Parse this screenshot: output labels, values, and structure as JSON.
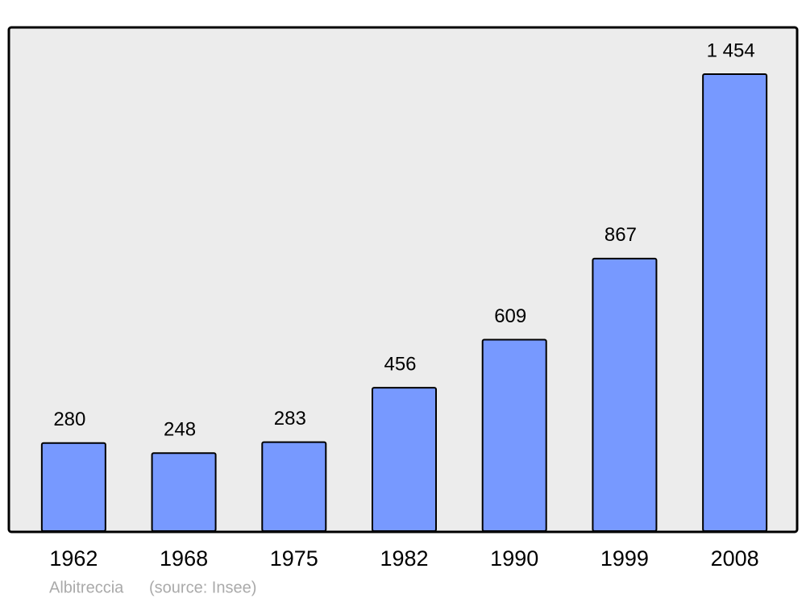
{
  "chart_data": {
    "type": "bar",
    "categories": [
      "1962",
      "1968",
      "1975",
      "1982",
      "1990",
      "1999",
      "2008"
    ],
    "values": [
      280,
      248,
      283,
      456,
      609,
      867,
      1454
    ],
    "value_labels": [
      "280",
      "248",
      "283",
      "456",
      "609",
      "867",
      "1 454"
    ],
    "color": "#7799ff",
    "ylim": [
      0,
      1600
    ],
    "caption": "Albitreccia",
    "source": "(source: Insee)"
  }
}
